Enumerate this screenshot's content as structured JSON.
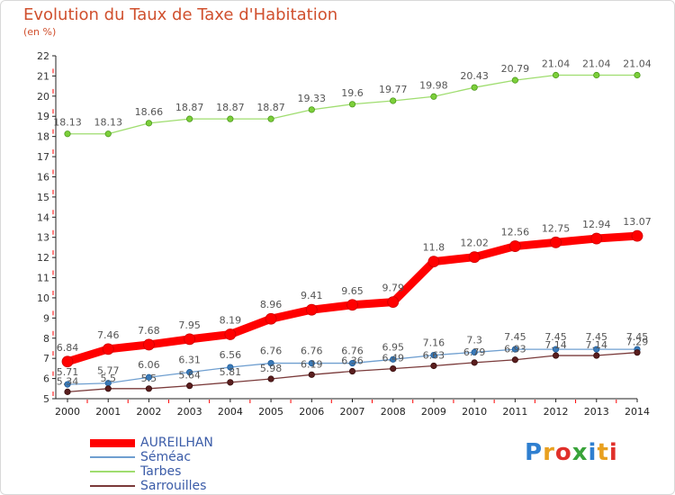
{
  "chart_data": {
    "type": "line",
    "title": "Evolution du Taux de Taxe d'Habitation",
    "subtitle": "(en %)",
    "xlabel": "",
    "ylabel": "",
    "ylim": [
      5,
      22
    ],
    "yticks": [
      5,
      6,
      7,
      8,
      9,
      10,
      11,
      12,
      13,
      14,
      15,
      16,
      17,
      18,
      19,
      20,
      21,
      22
    ],
    "grid": false,
    "legend_placement": "bottom-left",
    "x": [
      "2000",
      "2001",
      "2002",
      "2003",
      "2004",
      "2005",
      "2006",
      "2007",
      "2008",
      "2009",
      "2010",
      "2011",
      "2012",
      "2013",
      "2014"
    ],
    "series": [
      {
        "name": "AUREILHAN",
        "color": "#ff0000",
        "values": [
          6.84,
          7.46,
          7.68,
          7.95,
          8.19,
          8.96,
          9.41,
          9.65,
          9.79,
          11.8,
          12.02,
          12.56,
          12.75,
          12.94,
          13.07
        ],
        "labels": [
          "6.84",
          "7.46",
          "7.68",
          "7.95",
          "8.19",
          "8.96",
          "9.41",
          "9.65",
          "9.79",
          "11.8",
          "12.02",
          "12.56",
          "12.75",
          "12.94",
          "13.07"
        ]
      },
      {
        "name": "Séméac",
        "color": "#6f9fd0",
        "values": [
          5.71,
          5.77,
          6.06,
          6.31,
          6.56,
          6.76,
          6.76,
          6.76,
          6.95,
          7.16,
          7.3,
          7.45,
          7.45,
          7.45,
          7.45
        ],
        "labels": [
          "5.71",
          "5.77",
          "6.06",
          "6.31",
          "6.56",
          "6.76",
          "6.76",
          "6.76",
          "6.95",
          "7.16",
          "7.3",
          "7.45",
          "7.45",
          "7.45",
          "7.45"
        ]
      },
      {
        "name": "Tarbes",
        "color": "#9fdd6f",
        "values": [
          18.13,
          18.13,
          18.66,
          18.87,
          18.87,
          18.87,
          19.33,
          19.6,
          19.77,
          19.98,
          20.43,
          20.79,
          21.04,
          21.04,
          21.04
        ],
        "labels": [
          "18.13",
          "18.13",
          "18.66",
          "18.87",
          "18.87",
          "18.87",
          "19.33",
          "19.6",
          "19.77",
          "19.98",
          "20.43",
          "20.79",
          "21.04",
          "21.04",
          "21.04"
        ]
      },
      {
        "name": "Sarrouilles",
        "color": "#7a3a3a",
        "values": [
          5.34,
          5.5,
          5.5,
          5.64,
          5.81,
          5.98,
          6.19,
          6.36,
          6.49,
          6.63,
          6.79,
          6.93,
          7.14,
          7.14,
          7.29
        ],
        "labels": [
          "5.34",
          "5.5",
          "5.5",
          "5.64",
          "5.81",
          "5.98",
          "6.19",
          "6.36",
          "6.49",
          "6.63",
          "6.79",
          "6.93",
          "7.14",
          "7.14",
          "7.29"
        ]
      }
    ]
  },
  "logo": {
    "text": "Proxiti"
  }
}
